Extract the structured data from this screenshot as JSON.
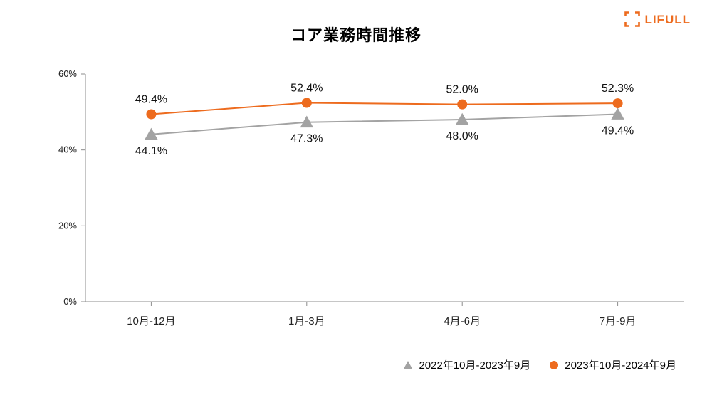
{
  "brand": {
    "name": "LIFULL",
    "color": "#ed6b1e"
  },
  "title": "コア業務時間推移",
  "chart": {
    "type": "line",
    "background_color": "#ffffff",
    "axis_color": "#8c8c8c",
    "grid_color": "#8c8c8c",
    "tick_text_color": "#222222",
    "ylim": [
      0,
      60
    ],
    "ytick_step": 20,
    "ytick_suffix": "%",
    "categories": [
      "10月-12月",
      "1月-3月",
      "4月-6月",
      "7月-9月"
    ],
    "series": [
      {
        "name": "2022年10月-2023年9月",
        "marker": "triangle",
        "marker_size": 12,
        "color": "#a3a3a3",
        "line_width": 2,
        "values": [
          44.1,
          47.3,
          48.0,
          49.4
        ],
        "labels": [
          "44.1%",
          "47.3%",
          "48.0%",
          "49.4%"
        ],
        "label_position": "below"
      },
      {
        "name": "2023年10月-2024年9月",
        "marker": "circle",
        "marker_size": 10,
        "color": "#ed6b1e",
        "line_width": 2,
        "values": [
          49.4,
          52.4,
          52.0,
          52.3
        ],
        "labels": [
          "49.4%",
          "52.4%",
          "52.0%",
          "52.3%"
        ],
        "label_position": "above"
      }
    ],
    "title_fontsize": 22,
    "x_label_fontsize": 15,
    "y_label_fontsize": 13,
    "data_label_fontsize": 16,
    "legend_fontsize": 15
  }
}
